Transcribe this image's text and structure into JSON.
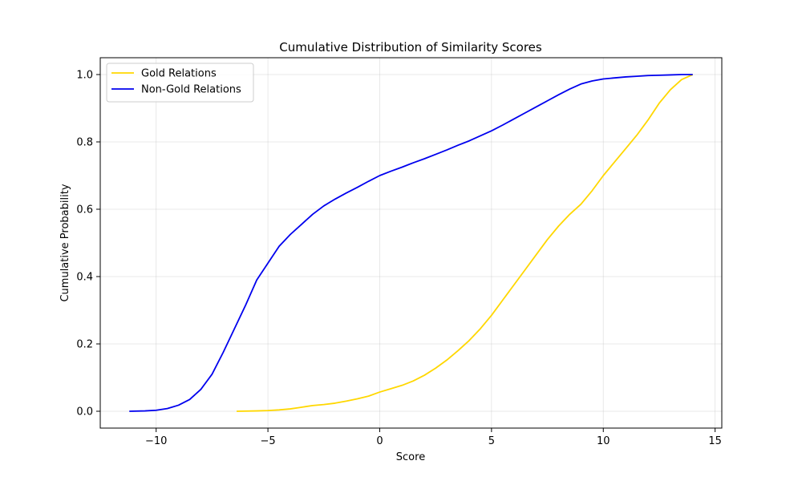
{
  "chart_data": {
    "type": "line",
    "title": "Cumulative Distribution of Similarity Scores",
    "xlabel": "Score",
    "ylabel": "Cumulative Probability",
    "xlim": [
      -12.5,
      15.3
    ],
    "ylim": [
      -0.05,
      1.05
    ],
    "xticks": [
      -10,
      -5,
      0,
      5,
      10,
      15
    ],
    "xtick_labels": [
      "−10",
      "−5",
      "0",
      "5",
      "10",
      "15"
    ],
    "yticks": [
      0.0,
      0.2,
      0.4,
      0.6,
      0.8,
      1.0
    ],
    "ytick_labels": [
      "0.0",
      "0.2",
      "0.4",
      "0.6",
      "0.8",
      "1.0"
    ],
    "grid": true,
    "legend_position": "top-left",
    "series": [
      {
        "name": "Gold Relations",
        "color": "#FFD700",
        "x": [
          -6.4,
          -5.5,
          -5.0,
          -4.5,
          -4.0,
          -3.5,
          -3.0,
          -2.5,
          -2.0,
          -1.5,
          -1.0,
          -0.5,
          0.0,
          0.5,
          1.0,
          1.5,
          2.0,
          2.5,
          3.0,
          3.5,
          4.0,
          4.5,
          5.0,
          5.5,
          6.0,
          6.5,
          7.0,
          7.5,
          8.0,
          8.5,
          9.0,
          9.5,
          10.0,
          10.5,
          11.0,
          11.5,
          12.0,
          12.5,
          13.0,
          13.5,
          14.0
        ],
        "y": [
          0.0,
          0.001,
          0.002,
          0.004,
          0.007,
          0.012,
          0.017,
          0.02,
          0.024,
          0.03,
          0.037,
          0.045,
          0.057,
          0.067,
          0.077,
          0.09,
          0.107,
          0.128,
          0.152,
          0.18,
          0.21,
          0.245,
          0.285,
          0.33,
          0.375,
          0.42,
          0.465,
          0.51,
          0.55,
          0.585,
          0.615,
          0.655,
          0.7,
          0.74,
          0.78,
          0.82,
          0.865,
          0.915,
          0.955,
          0.985,
          1.0
        ]
      },
      {
        "name": "Non-Gold Relations",
        "color": "#0000EE",
        "x": [
          -11.2,
          -10.5,
          -10.0,
          -9.5,
          -9.0,
          -8.5,
          -8.0,
          -7.5,
          -7.0,
          -6.5,
          -6.0,
          -5.5,
          -5.0,
          -4.5,
          -4.0,
          -3.5,
          -3.0,
          -2.5,
          -2.0,
          -1.5,
          -1.0,
          -0.5,
          0.0,
          0.5,
          1.0,
          1.5,
          2.0,
          2.5,
          3.0,
          3.5,
          4.0,
          4.5,
          5.0,
          5.5,
          6.0,
          6.5,
          7.0,
          7.5,
          8.0,
          8.5,
          9.0,
          9.5,
          10.0,
          10.5,
          11.0,
          11.5,
          12.0,
          12.5,
          13.0,
          13.5,
          14.0
        ],
        "y": [
          0.0,
          0.001,
          0.003,
          0.008,
          0.018,
          0.035,
          0.065,
          0.11,
          0.175,
          0.245,
          0.315,
          0.39,
          0.44,
          0.49,
          0.525,
          0.555,
          0.585,
          0.61,
          0.63,
          0.648,
          0.665,
          0.683,
          0.7,
          0.713,
          0.725,
          0.738,
          0.75,
          0.763,
          0.776,
          0.79,
          0.803,
          0.818,
          0.833,
          0.85,
          0.868,
          0.886,
          0.904,
          0.922,
          0.94,
          0.957,
          0.972,
          0.981,
          0.987,
          0.99,
          0.993,
          0.995,
          0.997,
          0.998,
          0.999,
          1.0,
          1.0
        ]
      }
    ]
  }
}
